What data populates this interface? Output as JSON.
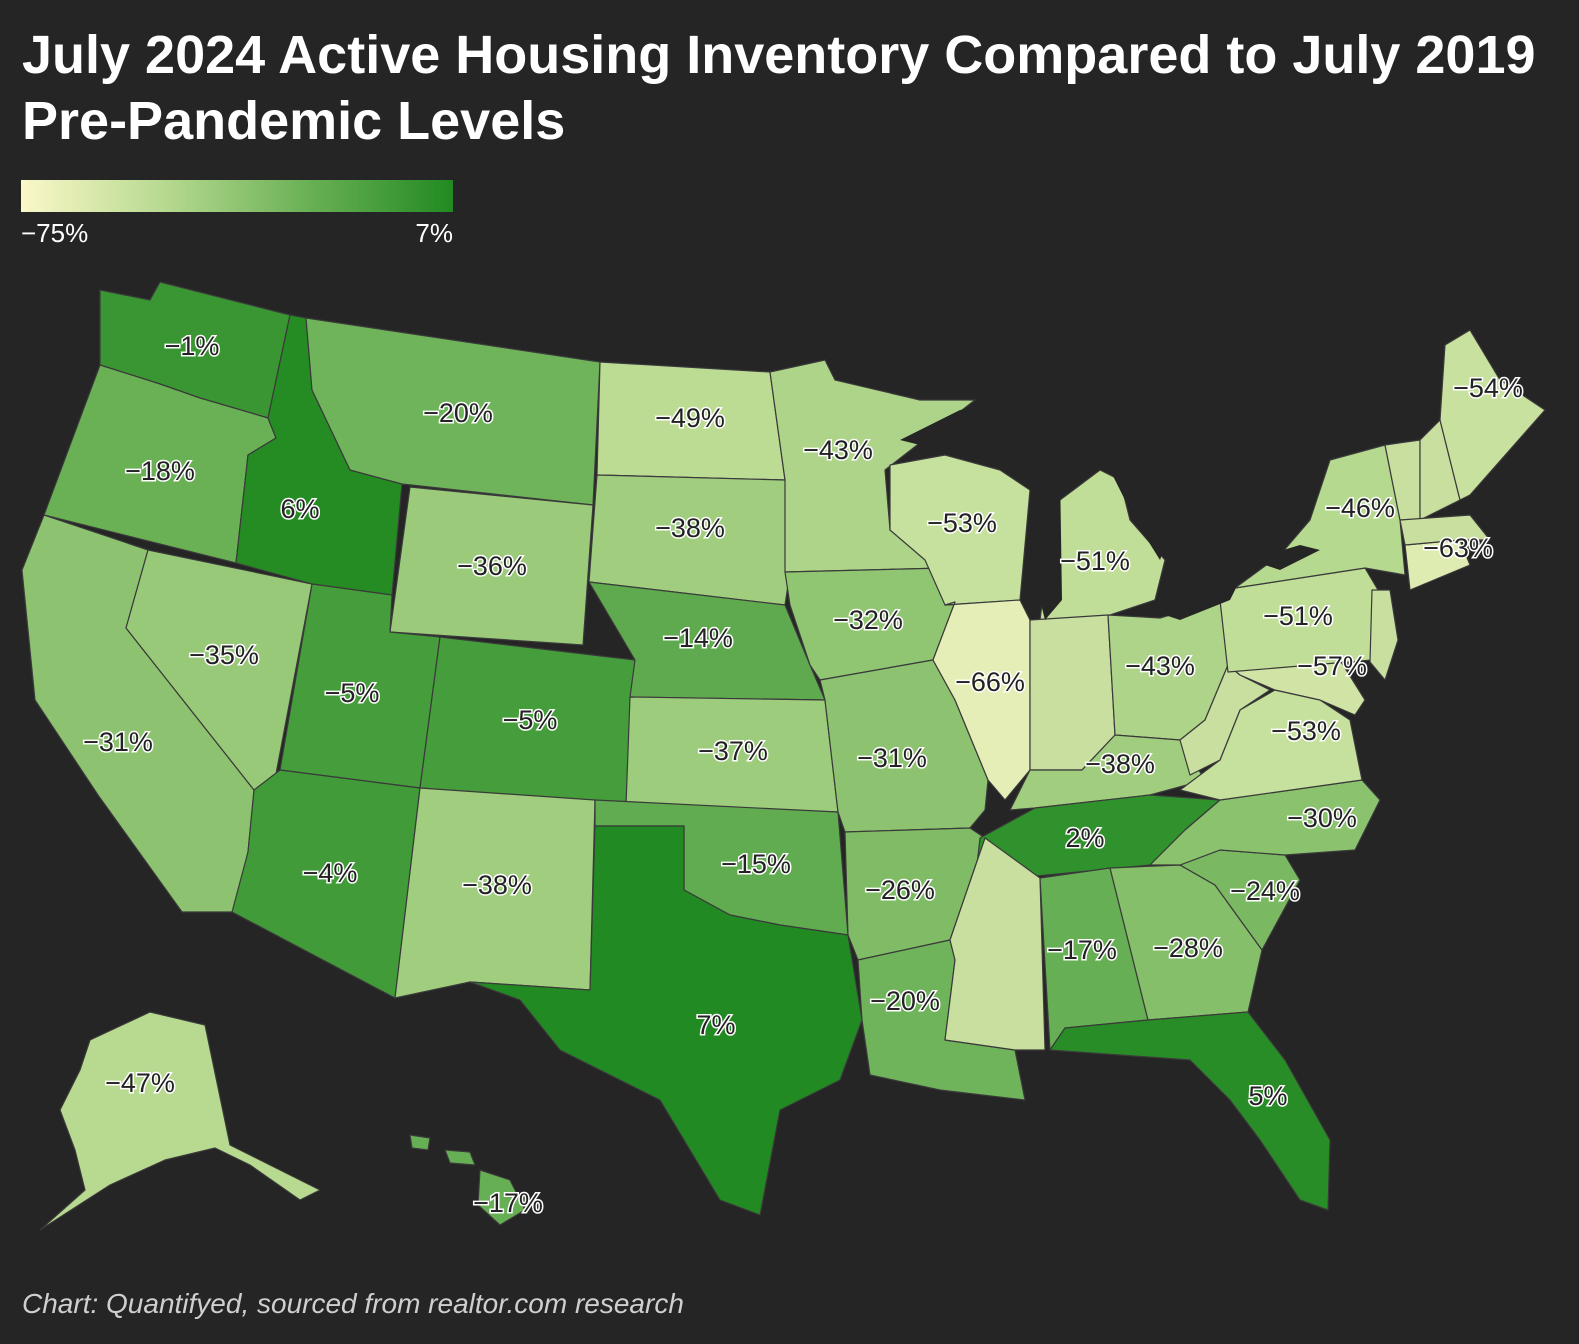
{
  "title": "July 2024 Active Housing Inventory Compared to July 2019 Pre-Pandemic Levels",
  "caption": "Chart: Quantifyed, sourced from realtor.com research",
  "legend": {
    "min_label": "−75%",
    "max_label": "7%",
    "min_value": -75,
    "max_value": 7,
    "color_low": "#fbf8c9",
    "color_high": "#228a22"
  },
  "chart_data": {
    "type": "choropleth",
    "title": "July 2024 Active Housing Inventory Compared to July 2019 Pre-Pandemic Levels",
    "unit": "%",
    "states": [
      {
        "id": "WA",
        "label": "−1%",
        "value": -1
      },
      {
        "id": "OR",
        "label": "−18%",
        "value": -18
      },
      {
        "id": "CA",
        "label": "−31%",
        "value": -31
      },
      {
        "id": "NV",
        "label": "−35%",
        "value": -35
      },
      {
        "id": "ID",
        "label": "6%",
        "value": 6
      },
      {
        "id": "MT",
        "label": "−20%",
        "value": -20
      },
      {
        "id": "WY",
        "label": "−36%",
        "value": -36
      },
      {
        "id": "UT",
        "label": "−5%",
        "value": -5
      },
      {
        "id": "CO",
        "label": "−5%",
        "value": -5
      },
      {
        "id": "AZ",
        "label": "−4%",
        "value": -4
      },
      {
        "id": "NM",
        "label": "−38%",
        "value": -38
      },
      {
        "id": "ND",
        "label": "−49%",
        "value": -49
      },
      {
        "id": "SD",
        "label": "−38%",
        "value": -38
      },
      {
        "id": "NE",
        "label": "−14%",
        "value": -14
      },
      {
        "id": "KS",
        "label": "−37%",
        "value": -37
      },
      {
        "id": "OK",
        "label": "−15%",
        "value": -15
      },
      {
        "id": "TX",
        "label": "7%",
        "value": 7
      },
      {
        "id": "MN",
        "label": "−43%",
        "value": -43
      },
      {
        "id": "IA",
        "label": "−32%",
        "value": -32
      },
      {
        "id": "MO",
        "label": "−31%",
        "value": -31
      },
      {
        "id": "AR",
        "label": "−26%",
        "value": -26
      },
      {
        "id": "LA",
        "label": "−20%",
        "value": -20
      },
      {
        "id": "WI",
        "label": "−53%",
        "value": -53
      },
      {
        "id": "IL",
        "label": "−66%",
        "value": -66
      },
      {
        "id": "MI",
        "label": "−51%",
        "value": -51
      },
      {
        "id": "IN",
        "label": "",
        "value": null
      },
      {
        "id": "OH",
        "label": "−43%",
        "value": -43
      },
      {
        "id": "KY",
        "label": "−38%",
        "value": -38
      },
      {
        "id": "TN",
        "label": "2%",
        "value": 2
      },
      {
        "id": "MS",
        "label": "",
        "value": null
      },
      {
        "id": "AL",
        "label": "−17%",
        "value": -17
      },
      {
        "id": "GA",
        "label": "−28%",
        "value": -28
      },
      {
        "id": "FL",
        "label": "5%",
        "value": 5
      },
      {
        "id": "SC",
        "label": "−24%",
        "value": -24
      },
      {
        "id": "NC",
        "label": "−30%",
        "value": -30
      },
      {
        "id": "VA",
        "label": "−53%",
        "value": -53
      },
      {
        "id": "WV",
        "label": "",
        "value": null
      },
      {
        "id": "MD",
        "label": "−57%",
        "value": -57
      },
      {
        "id": "PA",
        "label": "−51%",
        "value": -51
      },
      {
        "id": "NY",
        "label": "−46%",
        "value": -46
      },
      {
        "id": "NJ",
        "label": "",
        "value": null
      },
      {
        "id": "CT",
        "label": "−63%",
        "value": -63
      },
      {
        "id": "VT",
        "label": "",
        "value": null
      },
      {
        "id": "NH",
        "label": "",
        "value": null
      },
      {
        "id": "MA",
        "label": "",
        "value": null
      },
      {
        "id": "ME",
        "label": "−54%",
        "value": -54
      },
      {
        "id": "AK",
        "label": "−47%",
        "value": -47
      },
      {
        "id": "HI",
        "label": "−17%",
        "value": -17
      }
    ]
  }
}
